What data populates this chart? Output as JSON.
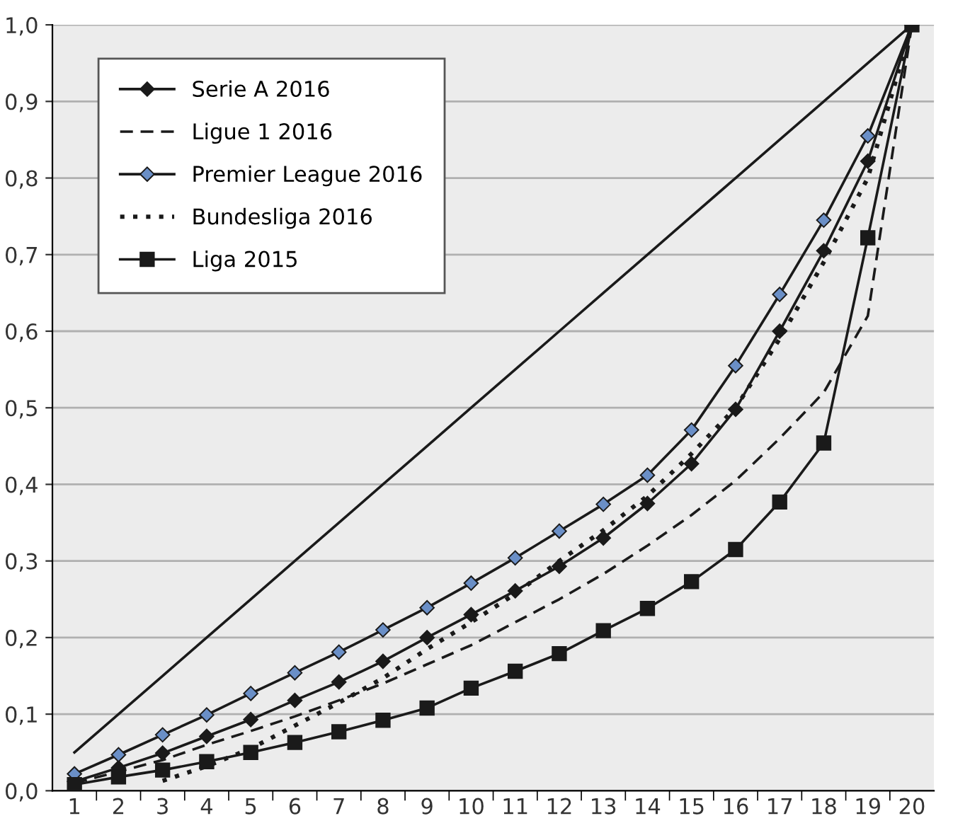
{
  "chart_data": {
    "type": "line",
    "categories": [
      "1",
      "2",
      "3",
      "4",
      "5",
      "6",
      "7",
      "8",
      "9",
      "10",
      "11",
      "12",
      "13",
      "14",
      "15",
      "16",
      "17",
      "18",
      "19",
      "20"
    ],
    "ylim": [
      0,
      1
    ],
    "yticks": [
      {
        "value": 0,
        "label": "0,0"
      },
      {
        "value": 0.1,
        "label": "0,1"
      },
      {
        "value": 0.2,
        "label": "0,2"
      },
      {
        "value": 0.3,
        "label": "0,3"
      },
      {
        "value": 0.4,
        "label": "0,4"
      },
      {
        "value": 0.5,
        "label": "0,5"
      },
      {
        "value": 0.6,
        "label": "0,6"
      },
      {
        "value": 0.7,
        "label": "0,7"
      },
      {
        "value": 0.8,
        "label": "0,8"
      },
      {
        "value": 0.9,
        "label": "0,9"
      },
      {
        "value": 1,
        "label": "1,0"
      }
    ],
    "grid": "y",
    "legend": "top left",
    "series": [
      {
        "name": "Serie A 2016",
        "color": "#1a1a1a",
        "marker": "diamond",
        "line_style": "solid",
        "values": [
          0.012,
          0.03,
          0.049,
          0.071,
          0.093,
          0.118,
          0.142,
          0.169,
          0.2,
          0.23,
          0.261,
          0.293,
          0.33,
          0.375,
          0.427,
          0.498,
          0.6,
          0.705,
          0.822,
          1.0
        ]
      },
      {
        "name": "Ligue 1 2016",
        "color": "#1a1a1a",
        "marker": "none",
        "line_style": "dashed",
        "values": [
          0.01,
          0.025,
          0.04,
          0.06,
          0.078,
          0.097,
          0.118,
          0.14,
          0.165,
          0.19,
          0.22,
          0.25,
          0.283,
          0.32,
          0.36,
          0.405,
          0.46,
          0.52,
          0.62,
          1.0
        ]
      },
      {
        "name": "Premier League 2016",
        "color": "#6a8fc7",
        "marker": "diamond",
        "line_style": "solid",
        "values": [
          0.022,
          0.047,
          0.073,
          0.099,
          0.127,
          0.154,
          0.181,
          0.21,
          0.239,
          0.271,
          0.304,
          0.339,
          0.374,
          0.412,
          0.471,
          0.555,
          0.648,
          0.745,
          0.855,
          1.0
        ]
      },
      {
        "name": "Bundesliga 2016",
        "color": "#1a1a1a",
        "marker": "none",
        "line_style": "dotted",
        "values": [
          null,
          null,
          0.013,
          0.032,
          0.055,
          0.085,
          0.115,
          0.147,
          0.185,
          0.22,
          0.257,
          0.3,
          0.34,
          0.385,
          0.44,
          0.5,
          0.59,
          0.69,
          0.8,
          1.0
        ]
      },
      {
        "name": "Liga 2015",
        "color": "#1a1a1a",
        "marker": "square",
        "line_style": "solid",
        "values": [
          0.008,
          0.018,
          0.027,
          0.038,
          0.05,
          0.063,
          0.077,
          0.092,
          0.108,
          0.134,
          0.156,
          0.179,
          0.209,
          0.238,
          0.273,
          0.315,
          0.377,
          0.454,
          0.722,
          1.0
        ]
      },
      {
        "color": "#1a1a1a",
        "marker": "none",
        "line_style": "solid",
        "values": [
          0.05,
          0.1,
          0.15,
          0.2,
          0.25,
          0.3,
          0.35,
          0.4,
          0.45,
          0.5,
          0.55,
          0.6,
          0.65,
          0.7,
          0.75,
          0.8,
          0.85,
          0.9,
          0.95,
          1.0
        ]
      }
    ]
  }
}
